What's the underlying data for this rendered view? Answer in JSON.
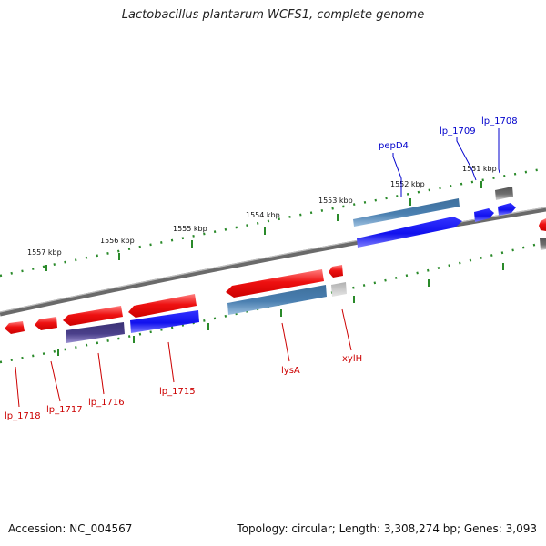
{
  "title": "Lactobacillus plantarum WCFS1, complete genome",
  "footer": {
    "accession": "Accession: NC_004567",
    "topology": "Topology: circular; Length: 3,308,274 bp; Genes: 3,093"
  },
  "kbp_labels": [
    "1557 kbp",
    "1556 kbp",
    "1555 kbp",
    "1554 kbp",
    "1553 kbp",
    "1552 kbp",
    "1551 kbp"
  ],
  "genes_top": [
    "pepD4",
    "lp_1709",
    "lp_1708"
  ],
  "genes_bottom": [
    "lp_1718",
    "lp_1717",
    "lp_1716",
    "lp_1715",
    "lysA",
    "xylH"
  ],
  "colors": {
    "backbone": "#808080",
    "tick": "#2a8a2a",
    "forward_label": "#0000cc",
    "reverse_label": "#cc0000",
    "red": "#ee1111",
    "blue": "#1111ee",
    "steelblue": "#4a7fb0",
    "purple": "#4a3f8a",
    "gray": "#707070"
  }
}
